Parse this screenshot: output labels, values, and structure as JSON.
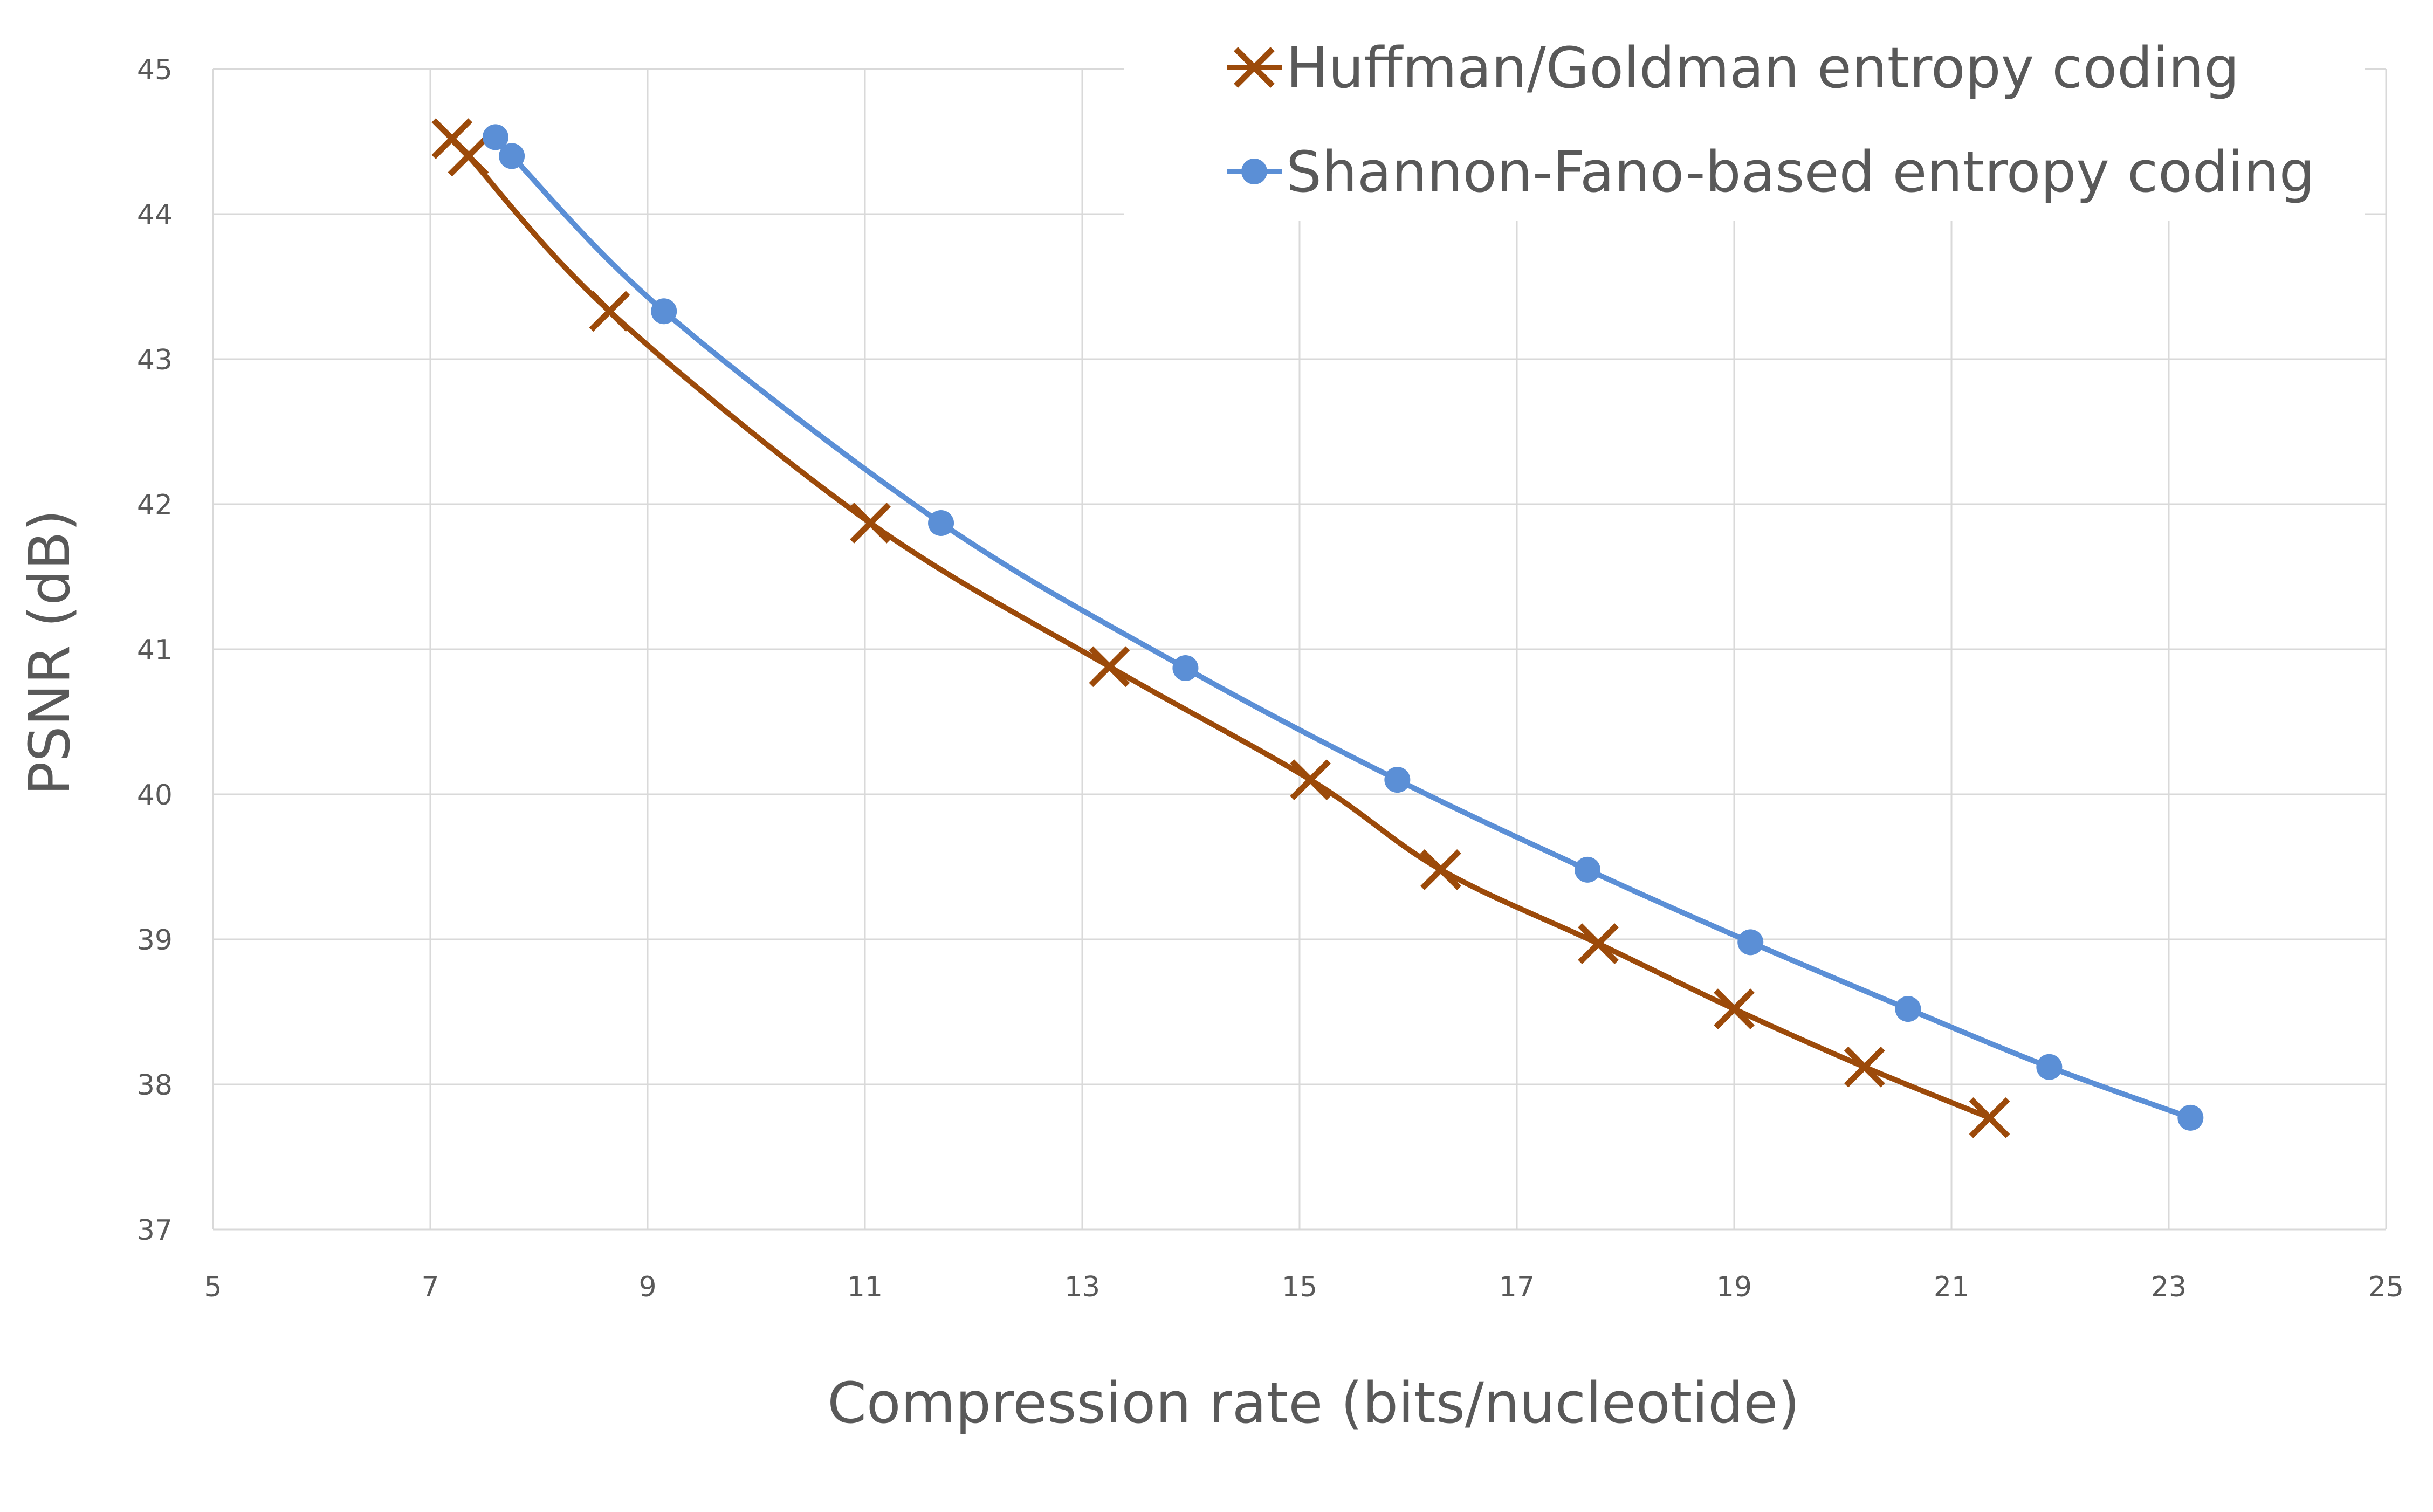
{
  "chart_data": {
    "type": "line",
    "title": "",
    "xlabel": "Compression rate (bits/nucleotide)",
    "ylabel": "PSNR (dB)",
    "xlim": [
      5,
      25
    ],
    "ylim": [
      37,
      45
    ],
    "x_ticks": [
      "5",
      "7",
      "9",
      "11",
      "13",
      "15",
      "17",
      "19",
      "21",
      "23",
      "25"
    ],
    "y_ticks": [
      "37",
      "38",
      "39",
      "40",
      "41",
      "42",
      "43",
      "44",
      "45"
    ],
    "grid": true,
    "legend_position": "top-right",
    "series": [
      {
        "name": "Huffman/Goldman entropy coding",
        "color": "#9c4a0a",
        "marker": "x",
        "x": [
          7.2,
          7.35,
          8.65,
          11.05,
          13.25,
          15.1,
          16.3,
          17.75,
          19.0,
          20.2,
          21.35
        ],
        "y": [
          44.52,
          44.4,
          43.33,
          41.87,
          40.88,
          40.1,
          39.48,
          38.97,
          38.52,
          38.12,
          37.77
        ]
      },
      {
        "name": "Shannon-Fano-based entropy coding",
        "color": "#5b8fd6",
        "marker": "circle",
        "x": [
          7.6,
          7.75,
          9.15,
          11.7,
          13.95,
          15.9,
          17.65,
          19.15,
          20.6,
          21.9,
          23.2
        ],
        "y": [
          44.53,
          44.4,
          43.33,
          41.87,
          40.87,
          40.1,
          39.48,
          38.98,
          38.52,
          38.12,
          37.77
        ]
      }
    ]
  }
}
